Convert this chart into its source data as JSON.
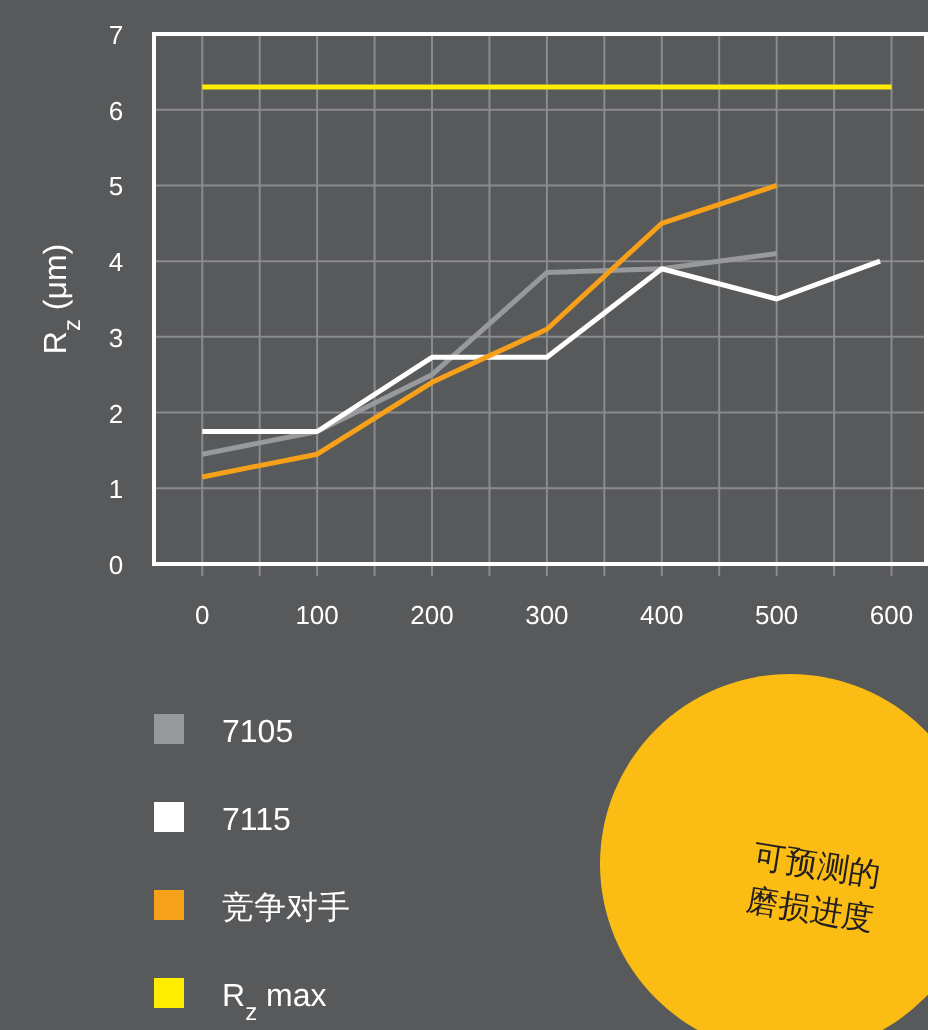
{
  "chart_data": {
    "type": "line",
    "ylabel": "R$_{z}$ (μm)",
    "xlim": [
      -42,
      630
    ],
    "ylim": [
      0,
      7
    ],
    "xticks": [
      0,
      {
        "value": 50,
        "label": null
      },
      100,
      {
        "value": 150,
        "label": null
      },
      200,
      {
        "value": 250,
        "label": null
      },
      300,
      {
        "value": 350,
        "label": null
      },
      400,
      {
        "value": 450,
        "label": null
      },
      500,
      {
        "value": 550,
        "label": null
      },
      600
    ],
    "yticks": [
      0,
      1,
      2,
      3,
      4,
      5,
      6,
      7
    ],
    "grid": true,
    "legend": "bottom left",
    "marker": "none",
    "line_style": "solid",
    "series": [
      {
        "name": "7105",
        "color": "#98999b",
        "x": [
          0,
          100,
          200,
          300,
          400,
          500
        ],
        "values": [
          1.45,
          1.75,
          2.5,
          3.85,
          3.9,
          4.1
        ]
      },
      {
        "name": "7115",
        "color": "#ffffff",
        "x": [
          0,
          100,
          200,
          300,
          400,
          500,
          590
        ],
        "values": [
          1.75,
          1.75,
          2.73,
          2.73,
          3.9,
          3.5,
          4.0
        ]
      },
      {
        "name": "竞争对手",
        "color": "#f7a11a",
        "x": [
          0,
          100,
          200,
          300,
          400,
          500
        ],
        "values": [
          1.15,
          1.45,
          2.4,
          3.1,
          4.5,
          5.0
        ]
      },
      {
        "name": "R$_{z}$ max",
        "color": "#ffed00",
        "x": [
          0,
          600
        ],
        "values": [
          6.3,
          6.3
        ]
      }
    ],
    "annotations": [
      "可预测的",
      "磨损进度"
    ]
  }
}
